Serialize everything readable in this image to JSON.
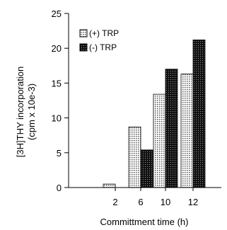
{
  "chart_data": {
    "type": "bar",
    "categories": [
      "2",
      "6",
      "10",
      "12"
    ],
    "series": [
      {
        "name": "(+) TRP",
        "values": [
          0.5,
          8.7,
          13.4,
          16.3
        ],
        "pattern": "dotted-light"
      },
      {
        "name": "(-) TRP",
        "values": [
          0,
          5.4,
          17.0,
          21.2
        ],
        "pattern": "dotted-dark"
      }
    ],
    "xlabel": "Committment time (h)",
    "ylabel_line1": "[3H]THY incorporation",
    "ylabel_line2": "(cpm x 10e-3)",
    "ylim": [
      0,
      25
    ],
    "yticks": [
      "0",
      "5",
      "10",
      "15",
      "20",
      "25"
    ],
    "grid": false,
    "legend_position": "top-left",
    "colors": {
      "axis": "#000000",
      "light_fill": "#d8d8d8",
      "dark_fill": "#222222"
    }
  }
}
